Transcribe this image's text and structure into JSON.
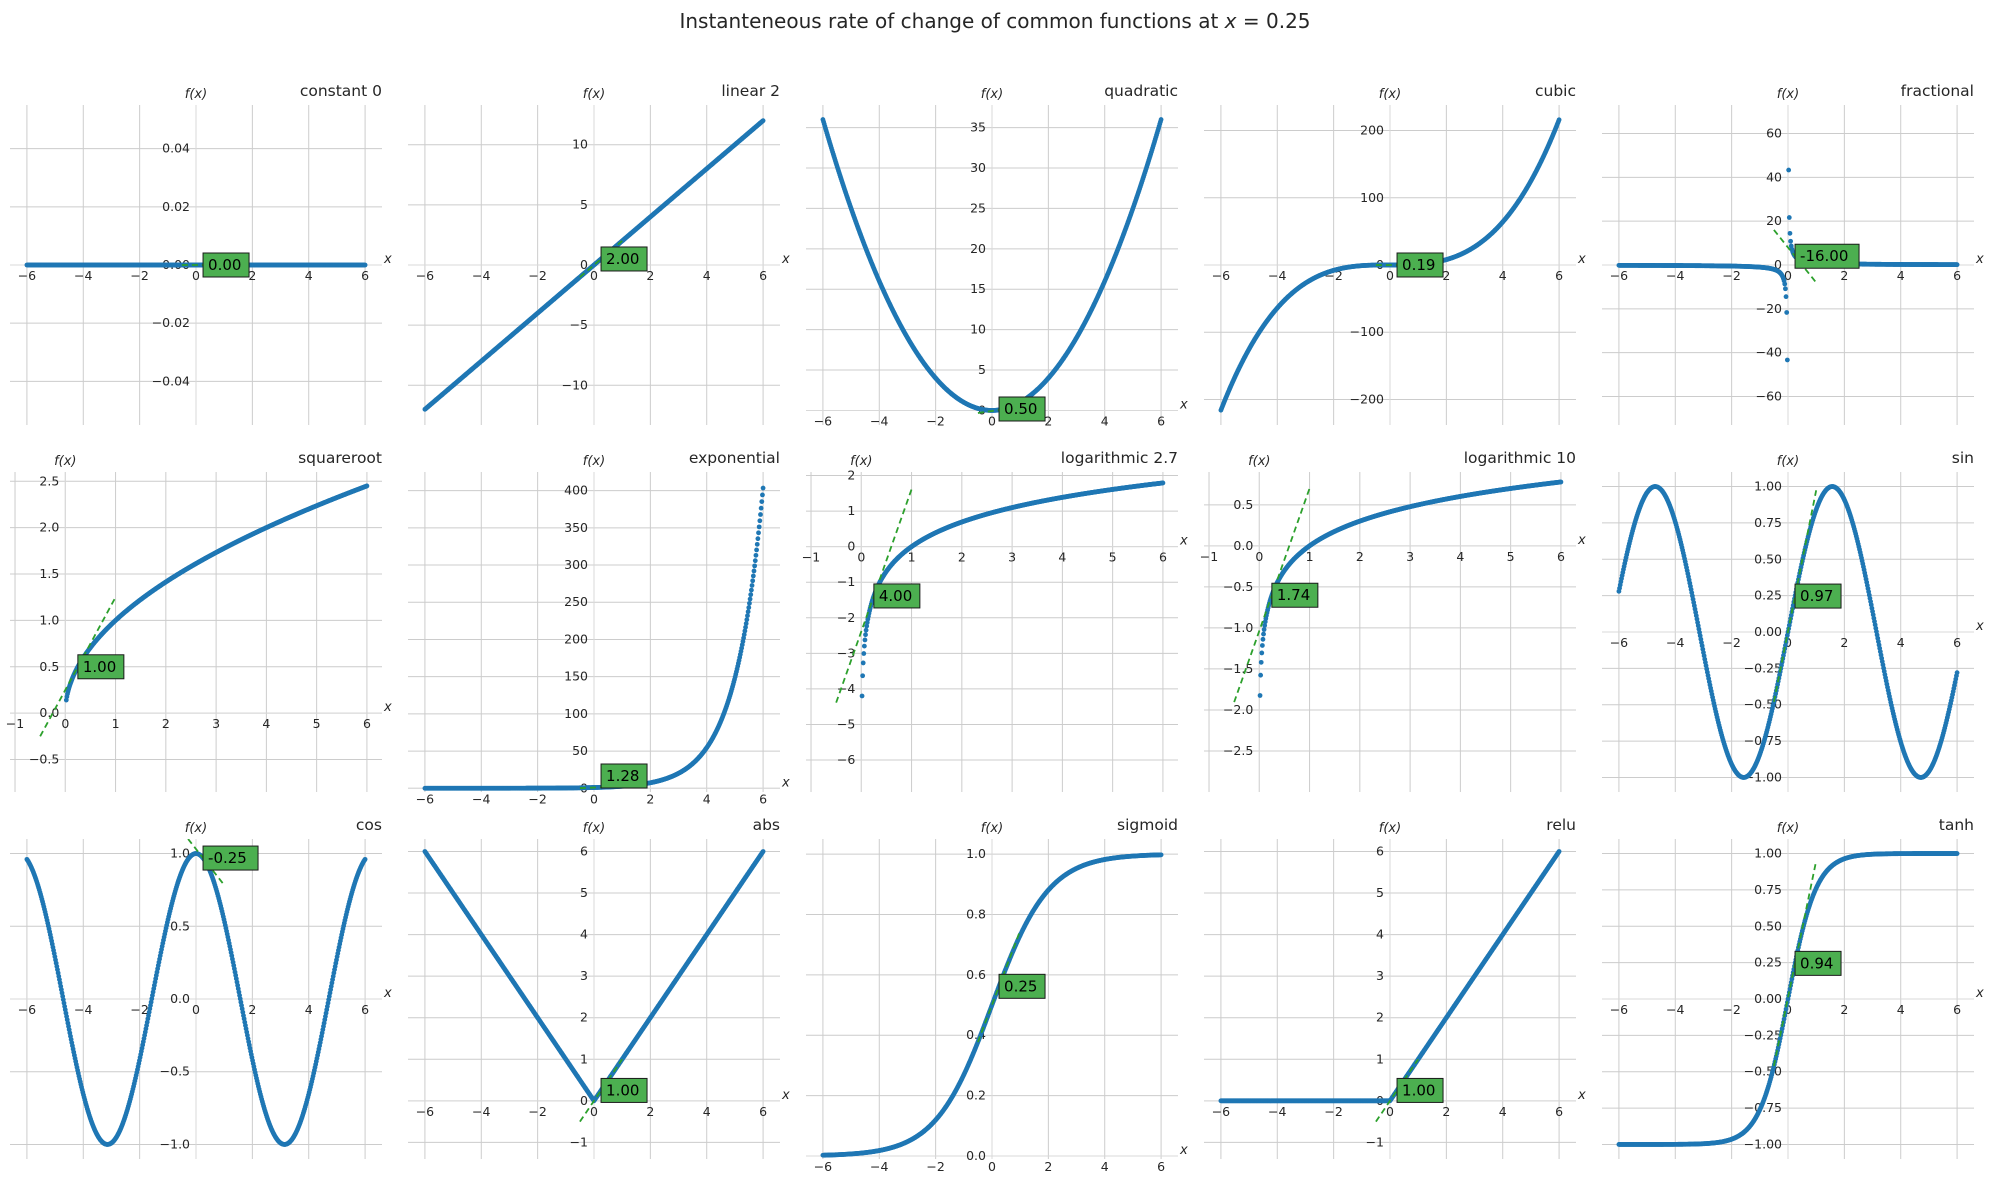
{
  "figure_title": "Instanteneous rate of change of common functions at x = 0.25",
  "axis_labels": {
    "x": "x",
    "y": "f(x)"
  },
  "colors": {
    "curve": "#1f77b4",
    "tangent": "#2ca02c",
    "label_box": "#4caf50",
    "grid": "#cccccc"
  },
  "chart_data": [
    {
      "type": "scatter",
      "title": "constant 0",
      "fn": "constant",
      "slope_label": "0.00",
      "slope": 0.0,
      "x0": 0.25,
      "y0": 0.0,
      "xlim": [
        -6.6,
        6.6
      ],
      "ylim": [
        -0.055,
        0.055
      ],
      "xticks": [
        -6,
        -4,
        -2,
        0,
        2,
        4,
        6
      ],
      "yticks": [
        -0.04,
        -0.02,
        0.0,
        0.02,
        0.04
      ],
      "ytick_labels": [
        "−0.04",
        "−0.02",
        "0.00",
        "0.02",
        "0.04"
      ],
      "x_domain": [
        -6,
        6
      ]
    },
    {
      "type": "scatter",
      "title": "linear 2",
      "fn": "linear2",
      "slope_label": "2.00",
      "slope": 2.0,
      "x0": 0.25,
      "y0": 0.5,
      "xlim": [
        -6.6,
        6.6
      ],
      "ylim": [
        -13.3,
        13.3
      ],
      "xticks": [
        -6,
        -4,
        -2,
        0,
        2,
        4,
        6
      ],
      "yticks": [
        -10,
        -5,
        0,
        5,
        10
      ],
      "ytick_labels": [
        "−10",
        "−5",
        "0",
        "5",
        "10"
      ],
      "x_domain": [
        -6,
        6
      ]
    },
    {
      "type": "scatter",
      "title": "quadratic",
      "fn": "quadratic",
      "slope_label": "0.50",
      "slope": 0.5,
      "x0": 0.25,
      "y0": 0.0625,
      "xlim": [
        -6.6,
        6.6
      ],
      "ylim": [
        -1.8,
        37.8
      ],
      "xticks": [
        -6,
        -4,
        -2,
        0,
        2,
        4,
        6
      ],
      "yticks": [
        0,
        5,
        10,
        15,
        20,
        25,
        30,
        35
      ],
      "ytick_labels": [
        "0",
        "5",
        "10",
        "15",
        "20",
        "25",
        "30",
        "35"
      ],
      "x_domain": [
        -6,
        6
      ]
    },
    {
      "type": "scatter",
      "title": "cubic",
      "fn": "cubic",
      "slope_label": "0.19",
      "slope": 0.1875,
      "x0": 0.25,
      "y0": 0.015625,
      "xlim": [
        -6.6,
        6.6
      ],
      "ylim": [
        -238,
        238
      ],
      "xticks": [
        -6,
        -4,
        -2,
        0,
        2,
        4,
        6
      ],
      "yticks": [
        -200,
        -100,
        0,
        100,
        200
      ],
      "ytick_labels": [
        "−200",
        "−100",
        "0",
        "100",
        "200"
      ],
      "x_domain": [
        -6,
        6
      ]
    },
    {
      "type": "scatter",
      "title": "fractional",
      "fn": "fractional",
      "slope_label": "-16.00",
      "slope": -16.0,
      "x0": 0.25,
      "y0": 4.0,
      "xlim": [
        -6.6,
        6.6
      ],
      "ylim": [
        -73,
        73
      ],
      "xticks": [
        -6,
        -4,
        -2,
        0,
        2,
        4,
        6
      ],
      "yticks": [
        -60,
        -40,
        -20,
        0,
        20,
        40,
        60
      ],
      "ytick_labels": [
        "−60",
        "−40",
        "−20",
        "0",
        "20",
        "40",
        "60"
      ],
      "x_domain": [
        -6,
        6
      ]
    },
    {
      "type": "scatter",
      "title": "squareroot",
      "fn": "sqrt",
      "slope_label": "1.00",
      "slope": 1.0,
      "x0": 0.25,
      "y0": 0.5,
      "xlim": [
        -1.1,
        6.3
      ],
      "ylim": [
        -0.85,
        2.6
      ],
      "xticks": [
        -1,
        0,
        1,
        2,
        3,
        4,
        5,
        6
      ],
      "yticks": [
        -0.5,
        0.0,
        0.5,
        1.0,
        1.5,
        2.0,
        2.5
      ],
      "ytick_labels": [
        "−0.5",
        "0.0",
        "0.5",
        "1.0",
        "1.5",
        "2.0",
        "2.5"
      ],
      "x_domain": [
        0.02,
        6
      ]
    },
    {
      "type": "scatter",
      "title": "exponential",
      "fn": "exp",
      "slope_label": "1.28",
      "slope": 1.284,
      "x0": 0.25,
      "y0": 1.284,
      "xlim": [
        -6.6,
        6.6
      ],
      "ylim": [
        -5,
        425
      ],
      "xticks": [
        -6,
        -4,
        -2,
        0,
        2,
        4,
        6
      ],
      "yticks": [
        0,
        50,
        100,
        150,
        200,
        250,
        300,
        350,
        400
      ],
      "ytick_labels": [
        "0",
        "50",
        "100",
        "150",
        "200",
        "250",
        "300",
        "350",
        "400"
      ],
      "x_domain": [
        -6,
        6
      ]
    },
    {
      "type": "scatter",
      "title": "logarithmic 2.7",
      "fn": "ln",
      "slope_label": "4.00",
      "slope": 4.0,
      "x0": 0.25,
      "y0": -1.386,
      "xlim": [
        -1.1,
        6.3
      ],
      "ylim": [
        -6.9,
        2.1
      ],
      "xticks": [
        -1,
        0,
        1,
        2,
        3,
        4,
        5,
        6
      ],
      "yticks": [
        -6,
        -5,
        -4,
        -3,
        -2,
        -1,
        0,
        1,
        2
      ],
      "ytick_labels": [
        "−6",
        "−5",
        "−4",
        "−3",
        "−2",
        "−1",
        "0",
        "1",
        "2"
      ],
      "x_domain": [
        0.015,
        6
      ]
    },
    {
      "type": "scatter",
      "title": "logarithmic 10",
      "fn": "log10",
      "slope_label": "1.74",
      "slope": 1.737,
      "x0": 0.25,
      "y0": -0.602,
      "xlim": [
        -1.1,
        6.3
      ],
      "ylim": [
        -3.0,
        0.9
      ],
      "xticks": [
        -1,
        0,
        1,
        2,
        3,
        4,
        5,
        6
      ],
      "yticks": [
        -2.5,
        -2.0,
        -1.5,
        -1.0,
        -0.5,
        0.0,
        0.5
      ],
      "ytick_labels": [
        "−2.5",
        "−2.0",
        "−1.5",
        "−1.0",
        "−0.5",
        "0.0",
        "0.5"
      ],
      "x_domain": [
        0.015,
        6
      ]
    },
    {
      "type": "scatter",
      "title": "sin",
      "fn": "sin",
      "slope_label": "0.97",
      "slope": 0.969,
      "x0": 0.25,
      "y0": 0.247,
      "xlim": [
        -6.6,
        6.6
      ],
      "ylim": [
        -1.1,
        1.1
      ],
      "xticks": [
        -6,
        -4,
        -2,
        0,
        2,
        4,
        6
      ],
      "yticks": [
        -1.0,
        -0.75,
        -0.5,
        -0.25,
        0.0,
        0.25,
        0.5,
        0.75,
        1.0
      ],
      "ytick_labels": [
        "−1.00",
        "−0.75",
        "−0.50",
        "−0.25",
        "0.00",
        "0.25",
        "0.50",
        "0.75",
        "1.00"
      ],
      "x_domain": [
        -6,
        6
      ]
    },
    {
      "type": "scatter",
      "title": "cos",
      "fn": "cos",
      "slope_label": "-0.25",
      "slope": -0.247,
      "x0": 0.25,
      "y0": 0.969,
      "xlim": [
        -6.6,
        6.6
      ],
      "ylim": [
        -1.1,
        1.1
      ],
      "xticks": [
        -6,
        -4,
        -2,
        0,
        2,
        4,
        6
      ],
      "yticks": [
        -1.0,
        -0.5,
        0.0,
        0.5,
        1.0
      ],
      "ytick_labels": [
        "−1.0",
        "−0.5",
        "0.0",
        "0.5",
        "1.0"
      ],
      "x_domain": [
        -6,
        6
      ]
    },
    {
      "type": "scatter",
      "title": "abs",
      "fn": "abs",
      "slope_label": "1.00",
      "slope": 1.0,
      "x0": 0.25,
      "y0": 0.25,
      "xlim": [
        -6.6,
        6.6
      ],
      "ylim": [
        -1.4,
        6.3
      ],
      "xticks": [
        -6,
        -4,
        -2,
        0,
        2,
        4,
        6
      ],
      "yticks": [
        -1,
        0,
        1,
        2,
        3,
        4,
        5,
        6
      ],
      "ytick_labels": [
        "−1",
        "0",
        "1",
        "2",
        "3",
        "4",
        "5",
        "6"
      ],
      "x_domain": [
        -6,
        6
      ]
    },
    {
      "type": "scatter",
      "title": "sigmoid",
      "fn": "sigmoid",
      "slope_label": "0.25",
      "slope": 0.246,
      "x0": 0.25,
      "y0": 0.562,
      "xlim": [
        -6.6,
        6.6
      ],
      "ylim": [
        -0.01,
        1.05
      ],
      "xticks": [
        -6,
        -4,
        -2,
        0,
        2,
        4,
        6
      ],
      "yticks": [
        0.0,
        0.2,
        0.4,
        0.6,
        0.8,
        1.0
      ],
      "ytick_labels": [
        "0.0",
        "0.2",
        "0.4",
        "0.6",
        "0.8",
        "1.0"
      ],
      "x_domain": [
        -6,
        6
      ]
    },
    {
      "type": "scatter",
      "title": "relu",
      "fn": "relu",
      "slope_label": "1.00",
      "slope": 1.0,
      "x0": 0.25,
      "y0": 0.25,
      "xlim": [
        -6.6,
        6.6
      ],
      "ylim": [
        -1.4,
        6.3
      ],
      "xticks": [
        -6,
        -4,
        -2,
        0,
        2,
        4,
        6
      ],
      "yticks": [
        -1,
        0,
        1,
        2,
        3,
        4,
        5,
        6
      ],
      "ytick_labels": [
        "−1",
        "0",
        "1",
        "2",
        "3",
        "4",
        "5",
        "6"
      ],
      "x_domain": [
        -6,
        6
      ]
    },
    {
      "type": "scatter",
      "title": "tanh",
      "fn": "tanh",
      "slope_label": "0.94",
      "slope": 0.94,
      "x0": 0.25,
      "y0": 0.245,
      "xlim": [
        -6.6,
        6.6
      ],
      "ylim": [
        -1.1,
        1.1
      ],
      "xticks": [
        -6,
        -4,
        -2,
        0,
        2,
        4,
        6
      ],
      "yticks": [
        -1.0,
        -0.75,
        -0.5,
        -0.25,
        0.0,
        0.25,
        0.5,
        0.75,
        1.0
      ],
      "ytick_labels": [
        "−1.00",
        "−0.75",
        "−0.50",
        "−0.25",
        "0.00",
        "0.25",
        "0.50",
        "0.75",
        "1.00"
      ],
      "x_domain": [
        -6,
        6
      ]
    }
  ]
}
